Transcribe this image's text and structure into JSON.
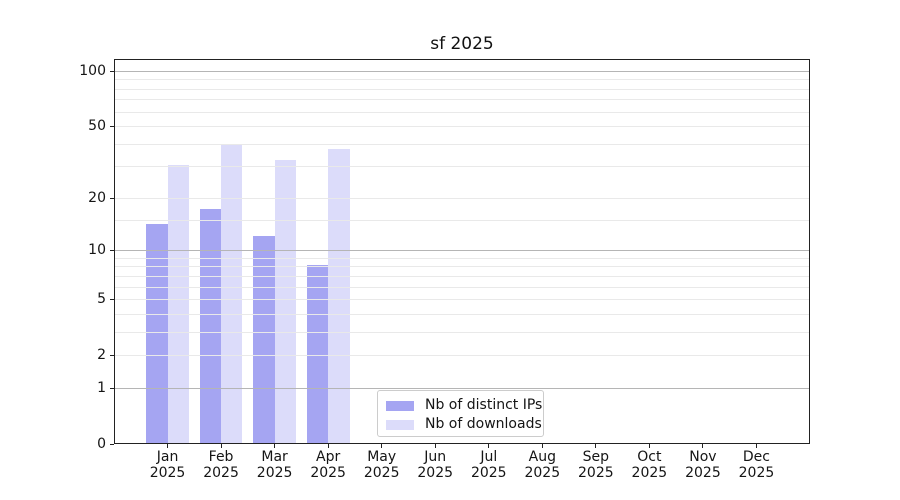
{
  "title": "sf 2025",
  "chart_data": {
    "type": "bar",
    "title": "sf 2025",
    "categories": [
      "Jan 2025",
      "Feb 2025",
      "Mar 2025",
      "Apr 2025",
      "May 2025",
      "Jun 2025",
      "Jul 2025",
      "Aug 2025",
      "Sep 2025",
      "Oct 2025",
      "Nov 2025",
      "Dec 2025"
    ],
    "series": [
      {
        "name": "Nb of distinct IPs",
        "color": "#a5a5f2",
        "values": [
          14,
          17,
          12,
          8,
          0,
          0,
          0,
          0,
          0,
          0,
          0,
          0
        ]
      },
      {
        "name": "Nb of downloads",
        "color": "#dcdcfa",
        "values": [
          30,
          39,
          32,
          37,
          0,
          0,
          0,
          0,
          0,
          0,
          0,
          0
        ]
      }
    ],
    "xlabel": "",
    "ylabel": "",
    "yscale": "log1p",
    "ylim": [
      0,
      116
    ],
    "yticks": [
      0,
      1,
      2,
      5,
      10,
      20,
      50,
      100
    ],
    "minor_yticks": [
      3,
      4,
      6,
      7,
      8,
      9,
      15,
      30,
      40,
      60,
      70,
      80,
      90
    ],
    "grid": "y major+minor, drawn above bars",
    "legend_position": "lower center"
  }
}
